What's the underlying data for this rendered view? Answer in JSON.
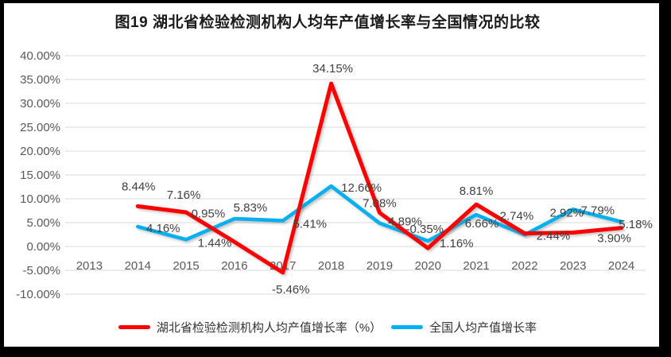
{
  "title": "图19  湖北省检验检测机构人均年产值增长率与全国情况的比较",
  "colors": {
    "hubei_series": "#FF0000",
    "national_series": "#00B0F0",
    "gridline": "#D9D9D9",
    "axis_text": "#595959",
    "data_label_text": "#404040",
    "frame": "#000000",
    "background": "#FFFFFF"
  },
  "chart_data": {
    "type": "line",
    "title": "图19  湖北省检验检测机构人均年产值增长率与全国情况的比较",
    "xlabel": "",
    "ylabel": "",
    "categories": [
      "2013",
      "2014",
      "2015",
      "2016",
      "2017",
      "2018",
      "2019",
      "2020",
      "2021",
      "2022",
      "2023",
      "2024"
    ],
    "series": [
      {
        "key": "hubei",
        "name": "湖北省检验检测机构人均产值增长率（%）",
        "color": "#FF0000",
        "values": [
          null,
          8.44,
          7.16,
          0.95,
          -5.46,
          34.15,
          7.08,
          -0.35,
          8.81,
          2.74,
          2.92,
          3.9
        ],
        "labels": [
          null,
          "8.44%",
          "7.16%",
          "0.95%",
          "-5.46%",
          "34.15%",
          "7.08%",
          "-0.35%",
          "8.81%",
          "2.74%",
          "2.92%",
          "3.90%"
        ]
      },
      {
        "key": "national",
        "name": "全国人均产值增长率",
        "color": "#00B0F0",
        "values": [
          null,
          4.16,
          1.44,
          5.83,
          5.41,
          12.66,
          4.89,
          1.16,
          6.66,
          2.44,
          7.79,
          5.18
        ],
        "labels": [
          null,
          "4.16%",
          "1.44%",
          "5.83%",
          "5.41%",
          "12.66%",
          "4.89%",
          "1.16%",
          "6.66%",
          "2.44%",
          "7.79%",
          "5.18%"
        ]
      }
    ],
    "y_ticks": [
      {
        "value": 40,
        "label": "40.00%"
      },
      {
        "value": 35,
        "label": "35.00%"
      },
      {
        "value": 30,
        "label": "30.00%"
      },
      {
        "value": 25,
        "label": "25.00%"
      },
      {
        "value": 20,
        "label": "20.00%"
      },
      {
        "value": 15,
        "label": "15.00%"
      },
      {
        "value": 10,
        "label": "10.00%"
      },
      {
        "value": 5,
        "label": "5.00%"
      },
      {
        "value": 0,
        "label": "0.00%"
      },
      {
        "value": -5,
        "label": "-5.00%"
      },
      {
        "value": -10,
        "label": "-10.00%"
      }
    ],
    "ylim": [
      -10,
      40
    ],
    "grid": true,
    "legend_position": "bottom"
  }
}
